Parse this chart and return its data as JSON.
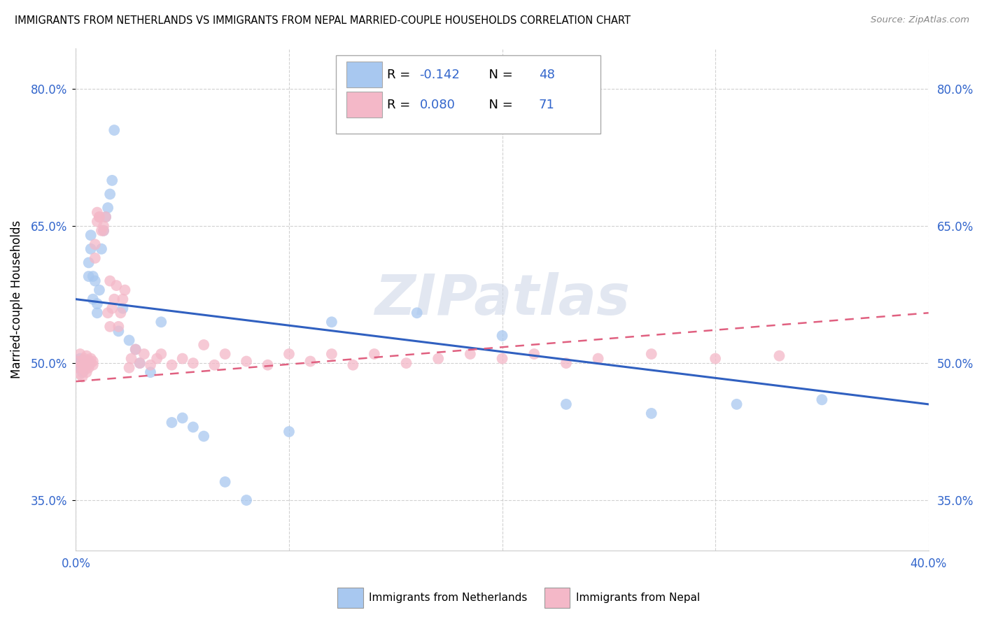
{
  "title": "IMMIGRANTS FROM NETHERLANDS VS IMMIGRANTS FROM NEPAL MARRIED-COUPLE HOUSEHOLDS CORRELATION CHART",
  "source_text": "Source: ZipAtlas.com",
  "ylabel": "Married-couple Households",
  "watermark": "ZIPatlas",
  "xlim": [
    0.0,
    0.4
  ],
  "ylim": [
    0.295,
    0.845
  ],
  "yticks": [
    0.35,
    0.5,
    0.65,
    0.8
  ],
  "ytick_labels": [
    "35.0%",
    "50.0%",
    "65.0%",
    "80.0%"
  ],
  "xticks": [
    0.0,
    0.1,
    0.2,
    0.3,
    0.4
  ],
  "xtick_labels": [
    "0.0%",
    "",
    "",
    "",
    "40.0%"
  ],
  "netherlands_color": "#a8c8f0",
  "nepal_color": "#f4b8c8",
  "netherlands_line_color": "#3060c0",
  "nepal_line_color": "#e06080",
  "netherlands_R": -0.142,
  "netherlands_N": 48,
  "nepal_R": 0.08,
  "nepal_N": 71,
  "legend_color": "#3366cc",
  "nl_line_y0": 0.57,
  "nl_line_y1": 0.455,
  "np_line_y0": 0.48,
  "np_line_y1": 0.555,
  "netherlands_x": [
    0.001,
    0.002,
    0.002,
    0.003,
    0.003,
    0.004,
    0.004,
    0.005,
    0.005,
    0.006,
    0.006,
    0.006,
    0.007,
    0.007,
    0.008,
    0.008,
    0.009,
    0.01,
    0.01,
    0.011,
    0.012,
    0.013,
    0.014,
    0.015,
    0.016,
    0.017,
    0.018,
    0.02,
    0.022,
    0.025,
    0.028,
    0.03,
    0.035,
    0.04,
    0.045,
    0.05,
    0.055,
    0.06,
    0.07,
    0.08,
    0.1,
    0.12,
    0.16,
    0.2,
    0.23,
    0.27,
    0.31,
    0.35
  ],
  "netherlands_y": [
    0.5,
    0.495,
    0.505,
    0.5,
    0.49,
    0.498,
    0.503,
    0.498,
    0.502,
    0.5,
    0.595,
    0.61,
    0.625,
    0.64,
    0.595,
    0.57,
    0.59,
    0.555,
    0.565,
    0.58,
    0.625,
    0.645,
    0.66,
    0.67,
    0.685,
    0.7,
    0.755,
    0.535,
    0.56,
    0.525,
    0.515,
    0.5,
    0.49,
    0.545,
    0.435,
    0.44,
    0.43,
    0.42,
    0.37,
    0.35,
    0.425,
    0.545,
    0.555,
    0.53,
    0.455,
    0.445,
    0.455,
    0.46
  ],
  "nepal_x": [
    0.001,
    0.001,
    0.002,
    0.002,
    0.003,
    0.003,
    0.003,
    0.004,
    0.004,
    0.004,
    0.005,
    0.005,
    0.005,
    0.006,
    0.006,
    0.006,
    0.007,
    0.007,
    0.008,
    0.008,
    0.009,
    0.009,
    0.01,
    0.01,
    0.011,
    0.011,
    0.012,
    0.013,
    0.013,
    0.014,
    0.015,
    0.016,
    0.016,
    0.017,
    0.018,
    0.019,
    0.02,
    0.021,
    0.022,
    0.023,
    0.025,
    0.026,
    0.028,
    0.03,
    0.032,
    0.035,
    0.038,
    0.04,
    0.045,
    0.05,
    0.055,
    0.06,
    0.065,
    0.07,
    0.08,
    0.09,
    0.1,
    0.11,
    0.12,
    0.13,
    0.14,
    0.155,
    0.17,
    0.185,
    0.2,
    0.215,
    0.23,
    0.245,
    0.27,
    0.3,
    0.33
  ],
  "nepal_y": [
    0.495,
    0.502,
    0.488,
    0.51,
    0.495,
    0.502,
    0.485,
    0.498,
    0.505,
    0.492,
    0.5,
    0.49,
    0.508,
    0.498,
    0.503,
    0.495,
    0.5,
    0.505,
    0.502,
    0.498,
    0.63,
    0.615,
    0.655,
    0.665,
    0.66,
    0.66,
    0.645,
    0.65,
    0.645,
    0.66,
    0.555,
    0.59,
    0.54,
    0.56,
    0.57,
    0.585,
    0.54,
    0.555,
    0.57,
    0.58,
    0.495,
    0.505,
    0.515,
    0.5,
    0.51,
    0.498,
    0.505,
    0.51,
    0.498,
    0.505,
    0.5,
    0.52,
    0.498,
    0.51,
    0.502,
    0.498,
    0.51,
    0.502,
    0.51,
    0.498,
    0.51,
    0.5,
    0.505,
    0.51,
    0.505,
    0.51,
    0.5,
    0.505,
    0.51,
    0.505,
    0.508
  ]
}
